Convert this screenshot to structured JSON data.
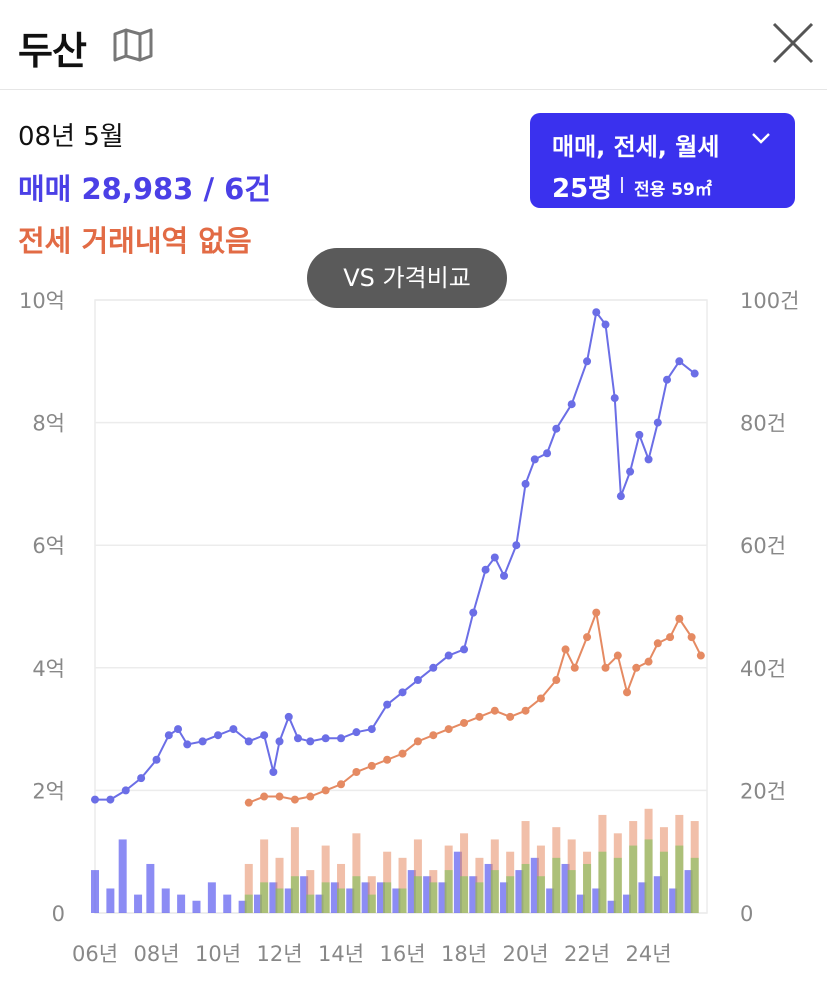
{
  "header": {
    "title": "두산",
    "map_icon": "map-icon",
    "close_icon": "close-icon"
  },
  "info": {
    "date": "08년 5월",
    "sale": "매매 28,983 / 6건",
    "jeonse": "전세 거래내역 없음"
  },
  "type_selector": {
    "deal_types": "매매, 전세, 월세",
    "size": "25평",
    "area": "전용 59㎡"
  },
  "vs_button": {
    "label": "VS 가격비교"
  },
  "colors": {
    "sale": "#6b6ee6",
    "jeonse": "#e58a62",
    "monthly": "#7fc25a",
    "sale_bar": "#5b5bef"
  },
  "chart_data": {
    "type": "line",
    "y_left_ticks": [
      "10억",
      "8억",
      "6억",
      "4억",
      "2억",
      "0"
    ],
    "y_right_ticks": [
      "100건",
      "80건",
      "60건",
      "40건",
      "20건",
      "0"
    ],
    "x_ticks": [
      "06년",
      "08년",
      "10년",
      "12년",
      "14년",
      "16년",
      "18년",
      "20년",
      "22년",
      "24년"
    ],
    "ylim_left": [
      0,
      10
    ],
    "ylim_right": [
      0,
      100
    ],
    "xlim": [
      2006,
      2025.9
    ],
    "series": [
      {
        "name": "매매",
        "values": [
          [
            2006.0,
            1.85
          ],
          [
            2006.5,
            1.85
          ],
          [
            2007.0,
            2.0
          ],
          [
            2007.5,
            2.2
          ],
          [
            2008.0,
            2.5
          ],
          [
            2008.4,
            2.9
          ],
          [
            2008.7,
            3.0
          ],
          [
            2009.0,
            2.75
          ],
          [
            2009.5,
            2.8
          ],
          [
            2010.0,
            2.9
          ],
          [
            2010.5,
            3.0
          ],
          [
            2011.0,
            2.8
          ],
          [
            2011.5,
            2.9
          ],
          [
            2011.8,
            2.3
          ],
          [
            2012.0,
            2.8
          ],
          [
            2012.3,
            3.2
          ],
          [
            2012.6,
            2.85
          ],
          [
            2013.0,
            2.8
          ],
          [
            2013.5,
            2.85
          ],
          [
            2014.0,
            2.85
          ],
          [
            2014.5,
            2.95
          ],
          [
            2015.0,
            3.0
          ],
          [
            2015.5,
            3.4
          ],
          [
            2016.0,
            3.6
          ],
          [
            2016.5,
            3.8
          ],
          [
            2017.0,
            4.0
          ],
          [
            2017.5,
            4.2
          ],
          [
            2018.0,
            4.3
          ],
          [
            2018.3,
            4.9
          ],
          [
            2018.7,
            5.6
          ],
          [
            2019.0,
            5.8
          ],
          [
            2019.3,
            5.5
          ],
          [
            2019.7,
            6.0
          ],
          [
            2020.0,
            7.0
          ],
          [
            2020.3,
            7.4
          ],
          [
            2020.7,
            7.5
          ],
          [
            2021.0,
            7.9
          ],
          [
            2021.5,
            8.3
          ],
          [
            2022.0,
            9.0
          ],
          [
            2022.3,
            9.8
          ],
          [
            2022.6,
            9.6
          ],
          [
            2022.9,
            8.4
          ],
          [
            2023.1,
            6.8
          ],
          [
            2023.4,
            7.2
          ],
          [
            2023.7,
            7.8
          ],
          [
            2024.0,
            7.4
          ],
          [
            2024.3,
            8.0
          ],
          [
            2024.6,
            8.7
          ],
          [
            2025.0,
            9.0
          ],
          [
            2025.5,
            8.8
          ]
        ]
      },
      {
        "name": "전세",
        "values": [
          [
            2011.0,
            1.8
          ],
          [
            2011.5,
            1.9
          ],
          [
            2012.0,
            1.9
          ],
          [
            2012.5,
            1.85
          ],
          [
            2013.0,
            1.9
          ],
          [
            2013.5,
            2.0
          ],
          [
            2014.0,
            2.1
          ],
          [
            2014.5,
            2.3
          ],
          [
            2015.0,
            2.4
          ],
          [
            2015.5,
            2.5
          ],
          [
            2016.0,
            2.6
          ],
          [
            2016.5,
            2.8
          ],
          [
            2017.0,
            2.9
          ],
          [
            2017.5,
            3.0
          ],
          [
            2018.0,
            3.1
          ],
          [
            2018.5,
            3.2
          ],
          [
            2019.0,
            3.3
          ],
          [
            2019.5,
            3.2
          ],
          [
            2020.0,
            3.3
          ],
          [
            2020.5,
            3.5
          ],
          [
            2021.0,
            3.8
          ],
          [
            2021.3,
            4.3
          ],
          [
            2021.6,
            4.0
          ],
          [
            2022.0,
            4.5
          ],
          [
            2022.3,
            4.9
          ],
          [
            2022.6,
            4.0
          ],
          [
            2023.0,
            4.2
          ],
          [
            2023.3,
            3.6
          ],
          [
            2023.6,
            4.0
          ],
          [
            2024.0,
            4.1
          ],
          [
            2024.3,
            4.4
          ],
          [
            2024.7,
            4.5
          ],
          [
            2025.0,
            4.8
          ],
          [
            2025.4,
            4.5
          ],
          [
            2025.7,
            4.2
          ]
        ]
      }
    ],
    "volume_series": [
      {
        "name": "매매 거래량",
        "values": [
          [
            2006.0,
            7
          ],
          [
            2006.5,
            4
          ],
          [
            2006.9,
            12
          ],
          [
            2007.4,
            3
          ],
          [
            2007.8,
            8
          ],
          [
            2008.3,
            4
          ],
          [
            2008.8,
            3
          ],
          [
            2009.3,
            2
          ],
          [
            2009.8,
            5
          ],
          [
            2010.3,
            3
          ],
          [
            2010.8,
            2
          ],
          [
            2011.3,
            3
          ],
          [
            2011.8,
            5
          ],
          [
            2012.3,
            4
          ],
          [
            2012.8,
            6
          ],
          [
            2013.3,
            3
          ],
          [
            2013.8,
            5
          ],
          [
            2014.3,
            4
          ],
          [
            2014.8,
            5
          ],
          [
            2015.3,
            5
          ],
          [
            2015.8,
            4
          ],
          [
            2016.3,
            7
          ],
          [
            2016.8,
            6
          ],
          [
            2017.3,
            5
          ],
          [
            2017.8,
            10
          ],
          [
            2018.3,
            6
          ],
          [
            2018.8,
            8
          ],
          [
            2019.3,
            5
          ],
          [
            2019.8,
            7
          ],
          [
            2020.3,
            9
          ],
          [
            2020.8,
            4
          ],
          [
            2021.3,
            8
          ],
          [
            2021.8,
            3
          ],
          [
            2022.3,
            4
          ],
          [
            2022.8,
            2
          ],
          [
            2023.3,
            3
          ],
          [
            2023.8,
            5
          ],
          [
            2024.3,
            6
          ],
          [
            2024.8,
            4
          ],
          [
            2025.3,
            7
          ]
        ]
      },
      {
        "name": "전세 거래량",
        "values": [
          [
            2011.0,
            8
          ],
          [
            2011.5,
            12
          ],
          [
            2012.0,
            9
          ],
          [
            2012.5,
            14
          ],
          [
            2013.0,
            7
          ],
          [
            2013.5,
            11
          ],
          [
            2014.0,
            8
          ],
          [
            2014.5,
            13
          ],
          [
            2015.0,
            6
          ],
          [
            2015.5,
            10
          ],
          [
            2016.0,
            9
          ],
          [
            2016.5,
            12
          ],
          [
            2017.0,
            7
          ],
          [
            2017.5,
            11
          ],
          [
            2018.0,
            13
          ],
          [
            2018.5,
            9
          ],
          [
            2019.0,
            12
          ],
          [
            2019.5,
            10
          ],
          [
            2020.0,
            15
          ],
          [
            2020.5,
            11
          ],
          [
            2021.0,
            14
          ],
          [
            2021.5,
            12
          ],
          [
            2022.0,
            10
          ],
          [
            2022.5,
            16
          ],
          [
            2023.0,
            13
          ],
          [
            2023.5,
            15
          ],
          [
            2024.0,
            17
          ],
          [
            2024.5,
            14
          ],
          [
            2025.0,
            16
          ],
          [
            2025.5,
            15
          ]
        ]
      },
      {
        "name": "월세 거래량",
        "values": [
          [
            2011.0,
            3
          ],
          [
            2011.5,
            5
          ],
          [
            2012.0,
            4
          ],
          [
            2012.5,
            6
          ],
          [
            2013.0,
            3
          ],
          [
            2013.5,
            5
          ],
          [
            2014.0,
            4
          ],
          [
            2014.5,
            6
          ],
          [
            2015.0,
            3
          ],
          [
            2015.5,
            5
          ],
          [
            2016.0,
            4
          ],
          [
            2016.5,
            6
          ],
          [
            2017.0,
            5
          ],
          [
            2017.5,
            7
          ],
          [
            2018.0,
            6
          ],
          [
            2018.5,
            5
          ],
          [
            2019.0,
            7
          ],
          [
            2019.5,
            6
          ],
          [
            2020.0,
            8
          ],
          [
            2020.5,
            6
          ],
          [
            2021.0,
            9
          ],
          [
            2021.5,
            7
          ],
          [
            2022.0,
            8
          ],
          [
            2022.5,
            10
          ],
          [
            2023.0,
            9
          ],
          [
            2023.5,
            11
          ],
          [
            2024.0,
            12
          ],
          [
            2024.5,
            10
          ],
          [
            2025.0,
            11
          ],
          [
            2025.5,
            9
          ]
        ]
      }
    ],
    "grid": true
  }
}
